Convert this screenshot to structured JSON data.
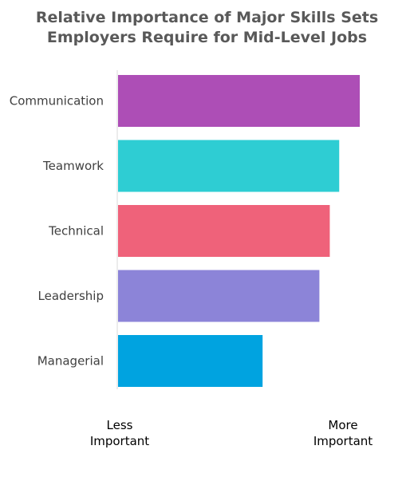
{
  "title_lines": [
    "Relative Importance of Major Skills Sets",
    "Employers Require for Mid-Level Jobs"
  ],
  "axis_ends": {
    "low": [
      "Less",
      "Important"
    ],
    "high": [
      "More",
      "Important"
    ]
  },
  "chart_data": {
    "type": "bar",
    "orientation": "horizontal",
    "title": "Relative Importance of Major Skills Sets Employers Require for Mid-Level Jobs",
    "categories": [
      "Communication",
      "Teamwork",
      "Technical",
      "Leadership",
      "Managerial"
    ],
    "values": [
      100,
      91.5,
      87.6,
      83.3,
      59.8
    ],
    "xlim": [
      0,
      100
    ],
    "colors": [
      "#ad4eb6",
      "#2ecdd3",
      "#ef627a",
      "#8c84d8",
      "#00a3e0"
    ],
    "grid": false,
    "legend": "none"
  }
}
